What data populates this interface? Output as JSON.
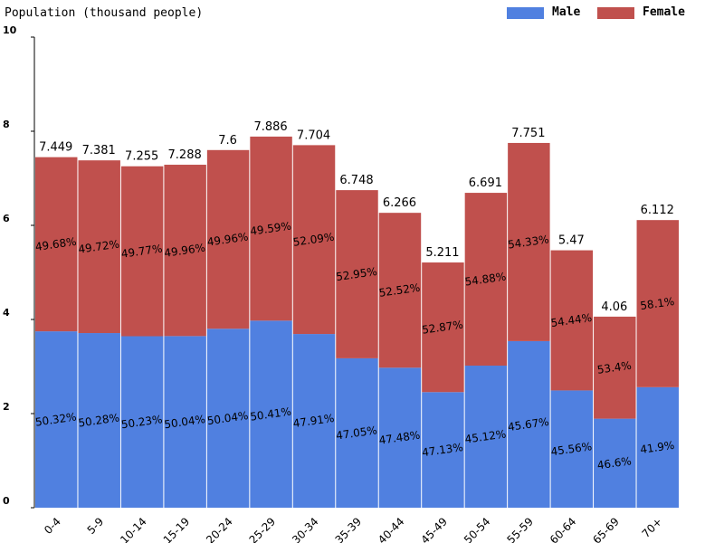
{
  "chart_data": {
    "type": "stacked_bar",
    "title": "Population (thousand people)",
    "categories": [
      "0-4",
      "5-9",
      "10-14",
      "15-19",
      "20-24",
      "25-29",
      "30-34",
      "35-39",
      "40-44",
      "45-49",
      "50-54",
      "55-59",
      "60-64",
      "65-69",
      "70+"
    ],
    "series": [
      {
        "name": "Male",
        "color": "#5080e0",
        "values": [
          3.748,
          3.711,
          3.644,
          3.647,
          3.803,
          3.975,
          3.691,
          3.175,
          2.975,
          2.456,
          3.019,
          3.54,
          2.492,
          1.892,
          2.561
        ],
        "share_labels": [
          "50.32%",
          "50.28%",
          "50.23%",
          "50.04%",
          "50.04%",
          "50.41%",
          "47.91%",
          "47.05%",
          "47.48%",
          "47.13%",
          "45.12%",
          "45.67%",
          "45.56%",
          "46.6%",
          "41.9%"
        ]
      },
      {
        "name": "Female",
        "color": "#c0504d",
        "values": [
          3.701,
          3.67,
          3.611,
          3.641,
          3.797,
          3.911,
          4.013,
          3.573,
          3.291,
          2.755,
          3.672,
          4.211,
          2.978,
          2.168,
          3.551
        ],
        "share_labels": [
          "49.68%",
          "49.72%",
          "49.77%",
          "49.96%",
          "49.96%",
          "49.59%",
          "52.09%",
          "52.95%",
          "52.52%",
          "52.87%",
          "54.88%",
          "54.33%",
          "54.44%",
          "53.4%",
          "58.1%"
        ]
      }
    ],
    "totals": [
      7.449,
      7.381,
      7.255,
      7.288,
      7.6,
      7.886,
      7.704,
      6.748,
      6.266,
      5.211,
      6.691,
      7.751,
      5.47,
      4.06,
      6.112
    ],
    "ylim": [
      0,
      10
    ],
    "yticks": [
      0,
      2,
      4,
      6,
      8,
      10
    ],
    "legend": "top-right"
  }
}
